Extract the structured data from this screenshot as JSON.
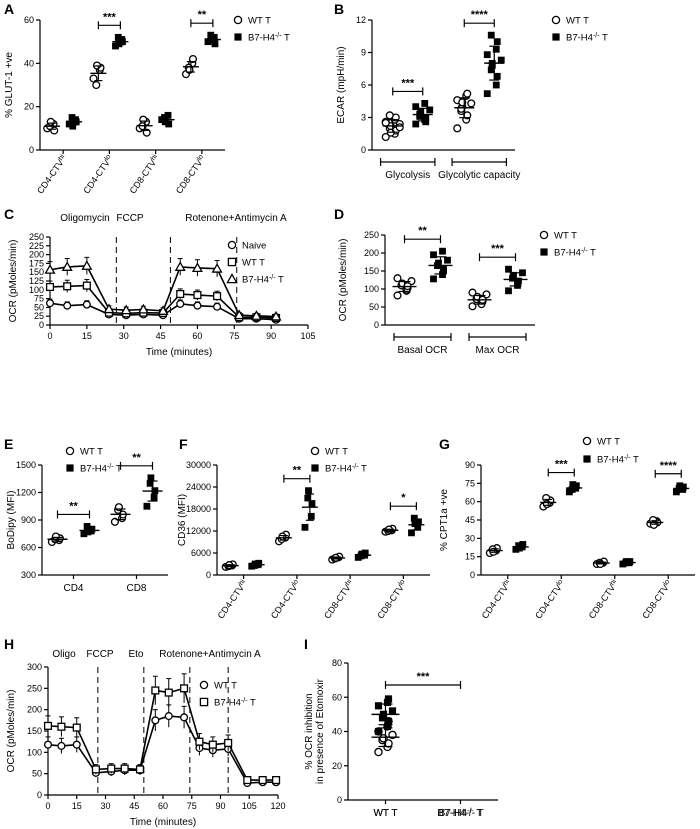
{
  "chart_data": [
    {
      "panel": "A",
      "type": "scatter",
      "categories": [
        "CD4-CTVhi",
        "CD4-CTVlo",
        "CD8-CTVhi",
        "CD8-CTVlo"
      ],
      "ylabel": "% GLUT-1 +ve",
      "ylim": [
        0,
        60
      ],
      "yticks": [
        "0",
        "20",
        "40",
        "60"
      ],
      "series": [
        {
          "name": "WT T",
          "marker": "open-circle",
          "points": [
            [
              10,
              12,
              9,
              11,
              13
            ],
            [
              33,
              37,
              38,
              30,
              39
            ],
            [
              10,
              13,
              8,
              11,
              14
            ],
            [
              35,
              40,
              42,
              38,
              37
            ]
          ]
        },
        {
          "name": "B7-H4-/- T",
          "marker": "filled-square",
          "points": [
            [
              12,
              14,
              13,
              15,
              11
            ],
            [
              48,
              51,
              50,
              52,
              49
            ],
            [
              14,
              16,
              12,
              15,
              13
            ],
            [
              50,
              52,
              49,
              53,
              51
            ]
          ]
        }
      ],
      "significance": [
        "",
        "***",
        "",
        "**"
      ]
    },
    {
      "panel": "B",
      "type": "scatter",
      "categories": [
        "Glycolysis",
        "Glycolytic capacity"
      ],
      "ylabel": "ECAR (mpH/min)",
      "ylim": [
        0,
        12
      ],
      "yticks": [
        "0",
        "3",
        "6",
        "9",
        "12"
      ],
      "series": [
        {
          "name": "WT T",
          "marker": "open-circle",
          "points": [
            [
              1.2,
              1.5,
              1.8,
              2.0,
              2.2,
              2.4,
              2.6,
              2.8,
              3.0,
              3.2,
              1.6,
              2.1,
              2.5
            ],
            [
              2.0,
              2.8,
              3.2,
              3.6,
              4.0,
              4.3,
              4.6,
              5.0,
              5.2,
              3.8,
              4.4
            ]
          ]
        },
        {
          "name": "B7-H4-/- T",
          "marker": "filled-square",
          "points": [
            [
              2.4,
              2.8,
              3.0,
              3.3,
              3.5,
              3.7,
              4.0,
              4.3,
              2.6,
              3.1
            ],
            [
              5.2,
              6.0,
              6.8,
              7.4,
              8.0,
              8.3,
              8.8,
              9.3,
              10.0,
              10.6,
              7.8
            ]
          ]
        }
      ],
      "significance": [
        "***",
        "****"
      ],
      "group_brackets": [
        "Glycolysis",
        "Glycolytic capacity"
      ]
    },
    {
      "panel": "C",
      "type": "line",
      "xlabel": "Time (minutes)",
      "ylabel": "OCR (pMoles/min)",
      "xlim": [
        0,
        105
      ],
      "ylim": [
        0,
        250
      ],
      "xticks": [
        "0",
        "15",
        "30",
        "45",
        "60",
        "75",
        "90",
        "105"
      ],
      "yticks": [
        "0",
        "25",
        "50",
        "75",
        "100",
        "125",
        "150",
        "175",
        "200",
        "225",
        "250"
      ],
      "injections": [
        {
          "label": "Oligomycin",
          "x": 27
        },
        {
          "label": "FCCP",
          "x": 49
        },
        {
          "label": "Rotenone+Antimycin A",
          "x": 76
        }
      ],
      "x": [
        0,
        7,
        15,
        24,
        31,
        38,
        46,
        53,
        60,
        68,
        77,
        84,
        92
      ],
      "series": [
        {
          "name": "Naive",
          "marker": "open-circle",
          "y": [
            62,
            55,
            58,
            30,
            28,
            30,
            28,
            60,
            55,
            52,
            18,
            18,
            15
          ]
        },
        {
          "name": "WT T",
          "marker": "open-square",
          "y": [
            108,
            110,
            112,
            35,
            33,
            35,
            34,
            88,
            85,
            82,
            22,
            22,
            20
          ]
        },
        {
          "name": "B7-H4-/- T",
          "marker": "open-triangle",
          "y": [
            157,
            165,
            168,
            45,
            42,
            44,
            40,
            165,
            162,
            160,
            28,
            26,
            24
          ]
        }
      ]
    },
    {
      "panel": "D",
      "type": "scatter",
      "categories": [
        "Basal OCR",
        "Max OCR"
      ],
      "ylabel": "OCR (pMoles/min)",
      "ylim": [
        0,
        250
      ],
      "yticks": [
        "0",
        "50",
        "100",
        "150",
        "200",
        "250"
      ],
      "series": [
        {
          "name": "WT T",
          "marker": "open-circle",
          "points": [
            [
              82,
              95,
              102,
              110,
              115,
              122,
              130,
              98,
              108
            ],
            [
              52,
              60,
              65,
              72,
              78,
              85,
              90,
              58,
              70
            ]
          ]
        },
        {
          "name": "B7-H4-/- T",
          "marker": "filled-square",
          "points": [
            [
              128,
              140,
              155,
              165,
              172,
              180,
              195,
              205,
              150
            ],
            [
              95,
              110,
              122,
              130,
              138,
              145,
              155,
              118
            ]
          ]
        }
      ],
      "significance": [
        "**",
        "***"
      ],
      "group_brackets": [
        "Basal OCR",
        "Max OCR"
      ]
    },
    {
      "panel": "E",
      "type": "scatter",
      "categories": [
        "CD4",
        "CD8"
      ],
      "ylabel": "BoDipy (MFI)",
      "ylim": [
        300,
        1500
      ],
      "yticks": [
        "300",
        "600",
        "900",
        "1200",
        "1500"
      ],
      "series": [
        {
          "name": "WT T",
          "marker": "open-circle",
          "points": [
            [
              660,
              680,
              700,
              690,
              720
            ],
            [
              880,
              920,
              960,
              1010,
              1040
            ]
          ]
        },
        {
          "name": "B7-H4-/- T",
          "marker": "filled-square",
          "points": [
            [
              750,
              780,
              800,
              830,
              770
            ],
            [
              1050,
              1150,
              1220,
              1300,
              1360
            ]
          ]
        }
      ],
      "significance": [
        "**",
        "**"
      ]
    },
    {
      "panel": "F",
      "type": "scatter",
      "categories": [
        "CD4-CTVhi",
        "CD4-CTVlo",
        "CD8-CTVhi",
        "CD8-CTVlo"
      ],
      "ylabel": "CD36 (MFI)",
      "ylim": [
        0,
        30000
      ],
      "yticks": [
        "0",
        "6000",
        "12000",
        "18000",
        "24000",
        "30000"
      ],
      "series": [
        {
          "name": "WT T",
          "marker": "open-circle",
          "points": [
            [
              2200,
              2600,
              2900,
              2400,
              2700
            ],
            [
              9200,
              10200,
              11000,
              9800,
              10500
            ],
            [
              4200,
              4800,
              5000,
              4500,
              4700
            ],
            [
              11800,
              12200,
              12600,
              12000,
              12400
            ]
          ]
        },
        {
          "name": "B7-H4-/- T",
          "marker": "filled-square",
          "points": [
            [
              2400,
              2800,
              3200,
              2600,
              3000
            ],
            [
              13000,
              16000,
              19500,
              21000,
              23000
            ],
            [
              4800,
              5400,
              6000,
              5200,
              5700
            ],
            [
              11500,
              13000,
              14500,
              15500,
              14000
            ]
          ]
        }
      ],
      "significance": [
        "",
        "**",
        "",
        "*"
      ]
    },
    {
      "panel": "G",
      "type": "scatter",
      "categories": [
        "CD4-CTVhi",
        "CD4-CTVlo",
        "CD8-CTVhi",
        "CD8-CTVlo"
      ],
      "ylabel": "% CPT1a +ve",
      "ylim": [
        0,
        90
      ],
      "yticks": [
        "0",
        "15",
        "30",
        "45",
        "60",
        "75",
        "90"
      ],
      "series": [
        {
          "name": "WT T",
          "marker": "open-circle",
          "points": [
            [
              18,
              20,
              22,
              21,
              19
            ],
            [
              56,
              59,
              61,
              63,
              58
            ],
            [
              9,
              10,
              11,
              10,
              9
            ],
            [
              42,
              44,
              43,
              45,
              41
            ]
          ]
        },
        {
          "name": "B7-H4-/- T",
          "marker": "filled-square",
          "points": [
            [
              21,
              23,
              25,
              24,
              22
            ],
            [
              68,
              71,
              73,
              70,
              74
            ],
            [
              9,
              10,
              11,
              10,
              11
            ],
            [
              68,
              70,
              72,
              71,
              73
            ]
          ]
        }
      ],
      "significance": [
        "",
        "***",
        "",
        "****"
      ]
    },
    {
      "panel": "H",
      "type": "line",
      "xlabel": "Time (minutes)",
      "ylabel": "OCR (pMoles/min)",
      "xlim": [
        0,
        120
      ],
      "ylim": [
        0,
        300
      ],
      "xticks": [
        "0",
        "15",
        "30",
        "45",
        "60",
        "75",
        "90",
        "105",
        "120"
      ],
      "yticks": [
        "0",
        "50",
        "100",
        "150",
        "200",
        "250",
        "300"
      ],
      "injections": [
        {
          "label": "Oligo",
          "x": 26
        },
        {
          "label": "FCCP",
          "x": 50
        },
        {
          "label": "Eto",
          "x": 74
        },
        {
          "label": "Rotenone+Antimycin A",
          "x": 94
        }
      ],
      "x": [
        0,
        7,
        15,
        25,
        33,
        40,
        48,
        56,
        63,
        71,
        79,
        86,
        94,
        104,
        112,
        119
      ],
      "series": [
        {
          "name": "WT T",
          "marker": "open-circle",
          "y": [
            118,
            115,
            118,
            52,
            55,
            58,
            58,
            175,
            185,
            182,
            110,
            105,
            108,
            28,
            30,
            30
          ]
        },
        {
          "name": "B7-H4-/- T",
          "marker": "open-square",
          "y": [
            162,
            160,
            158,
            60,
            62,
            62,
            60,
            245,
            240,
            250,
            125,
            118,
            122,
            35,
            35,
            35
          ]
        }
      ]
    },
    {
      "panel": "I",
      "type": "scatter",
      "categories": [
        "WT T",
        "B7-H4-/- T"
      ],
      "ylabel": "% OCR inhibition in presence of Etomoxir",
      "ylim": [
        0,
        80
      ],
      "yticks": [
        "0",
        "20",
        "40",
        "60",
        "80"
      ],
      "series": [
        {
          "name": "WT T",
          "marker": "open-circle",
          "points": [
            [
              28,
              31,
              33,
              35,
              36,
              38,
              40,
              43,
              46
            ]
          ]
        },
        {
          "name": "B7-H4-/- T",
          "marker": "filled-square",
          "points": [
            [
              40,
              43,
              46,
              48,
              50,
              52,
              55,
              57,
              59
            ]
          ]
        }
      ],
      "significance": [
        "***"
      ]
    }
  ]
}
